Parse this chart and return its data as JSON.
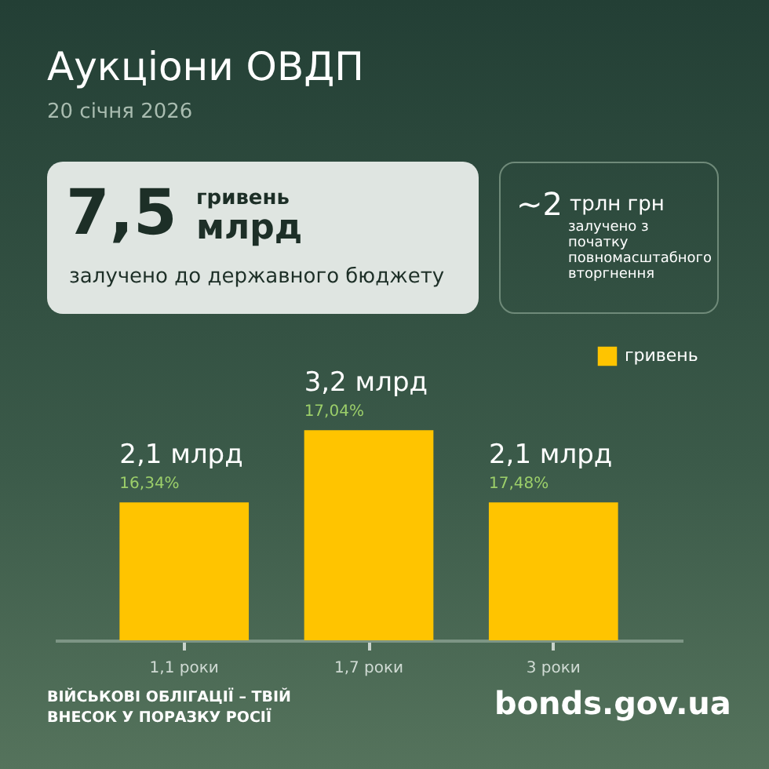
{
  "chart_data": {
    "type": "bar",
    "title": "Аукціони ОВДП",
    "subtitle": "20 січня 2026",
    "categories": [
      "1,1 роки",
      "1,7 роки",
      "3 роки"
    ],
    "series": [
      {
        "name": "гривень",
        "color": "#ffc400",
        "values": [
          2.1,
          3.2,
          2.1
        ],
        "value_labels": [
          "2,1 млрд",
          "3,2 млрд",
          "2,1 млрд"
        ]
      }
    ],
    "legend": "top right",
    "annotations": [
      "7,5",
      "гривень",
      "млрд",
      "залучено до державного бюджету",
      "~2",
      "трлн грн",
      "залучено з початку повномасштабного вторгнення",
      {
        "text": "16,34%",
        "x": "1,1 роки",
        "y": 2.1
      },
      {
        "text": "17,04%",
        "x": "1,7 роки",
        "y": 3.2
      },
      {
        "text": "17,48%",
        "x": "3 роки",
        "y": 2.1
      },
      "ВІЙСЬКОВІ ОБЛІГАЦІЇ – ТВІЙ ВНЕСОК У ПОРАЗКУ РОСІЇ",
      "bonds.gov.ua"
    ]
  }
}
